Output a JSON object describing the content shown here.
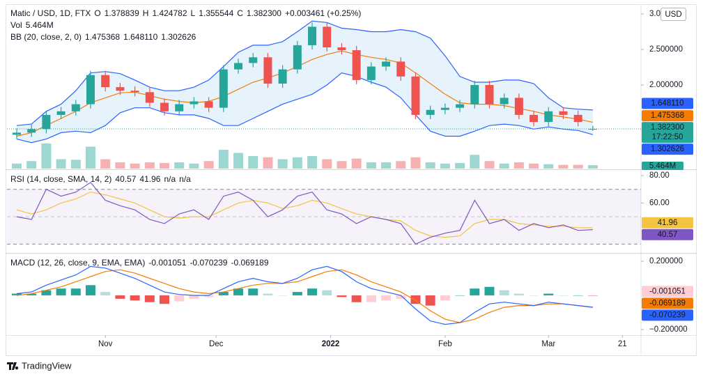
{
  "usd_button": "USD",
  "logo": "TradingView",
  "chart_data": [
    {
      "type": "candlestick",
      "title": "Matic / USD, 1D, FTX",
      "legend": [
        {
          "key": "O",
          "value": "1.378839"
        },
        {
          "key": "H",
          "value": "1.424782"
        },
        {
          "key": "L",
          "value": "1.355544"
        },
        {
          "key": "C",
          "value": "1.382300"
        }
      ],
      "change": "+0.003461 (+0.25%)",
      "categories": [
        null,
        null,
        null,
        null,
        null,
        null,
        null,
        null,
        null,
        null,
        null,
        null,
        null,
        null,
        null,
        null,
        null,
        null,
        null,
        null,
        null,
        null,
        null,
        null,
        null,
        null,
        null,
        null,
        null,
        null,
        null,
        null,
        null,
        null,
        null,
        null,
        null,
        null,
        null,
        null
      ],
      "opens": [
        1.3,
        1.33,
        1.38,
        1.58,
        1.63,
        1.73,
        2.14,
        1.97,
        1.92,
        1.9,
        1.75,
        1.63,
        1.73,
        1.77,
        1.68,
        2.22,
        2.31,
        2.39,
        2.02,
        2.22,
        2.56,
        2.82,
        2.53,
        2.49,
        2.07,
        2.26,
        2.33,
        2.12,
        1.58,
        1.65,
        1.68,
        1.73,
        2.0,
        1.73,
        1.82,
        1.58,
        1.48,
        1.63,
        1.58,
        1.378839
      ],
      "highs": [
        1.39,
        1.44,
        1.64,
        1.69,
        1.79,
        2.2,
        2.2,
        2.03,
        1.98,
        1.96,
        1.81,
        1.79,
        1.83,
        1.83,
        2.28,
        2.37,
        2.45,
        2.45,
        2.28,
        2.62,
        2.88,
        2.88,
        2.59,
        2.55,
        2.32,
        2.39,
        2.39,
        2.18,
        1.71,
        1.74,
        1.79,
        2.06,
        2.06,
        1.88,
        1.88,
        1.64,
        1.69,
        1.69,
        1.64,
        1.424782
      ],
      "lows": [
        1.24,
        1.27,
        1.32,
        1.52,
        1.57,
        1.67,
        1.91,
        1.86,
        1.84,
        1.69,
        1.57,
        1.57,
        1.67,
        1.62,
        1.62,
        2.16,
        2.25,
        1.96,
        1.96,
        2.16,
        2.5,
        2.47,
        2.43,
        2.01,
        2.01,
        2.2,
        2.06,
        1.52,
        1.52,
        1.59,
        1.62,
        1.67,
        1.67,
        1.67,
        1.52,
        1.42,
        1.42,
        1.52,
        1.42,
        1.355544
      ],
      "closes": [
        1.33,
        1.38,
        1.58,
        1.63,
        1.73,
        2.14,
        1.97,
        1.92,
        1.9,
        1.75,
        1.63,
        1.73,
        1.77,
        1.68,
        2.22,
        2.31,
        2.39,
        2.02,
        2.22,
        2.56,
        2.82,
        2.53,
        2.49,
        2.07,
        2.26,
        2.33,
        2.12,
        1.58,
        1.65,
        1.68,
        1.73,
        2.0,
        1.73,
        1.82,
        1.58,
        1.48,
        1.63,
        1.58,
        1.48,
        1.3823
      ],
      "up_color": "#26a69a",
      "down_color": "#ef5350",
      "volume": {
        "name": "Vol",
        "values": [
          8,
          12,
          40,
          15,
          14,
          35,
          15,
          10,
          8,
          10,
          9,
          10,
          8,
          12,
          30,
          25,
          20,
          18,
          15,
          18,
          20,
          15,
          12,
          16,
          10,
          10,
          12,
          18,
          10,
          8,
          9,
          22,
          12,
          8,
          10,
          8,
          7,
          6,
          6,
          5.464
        ],
        "last_label": "5.464M"
      },
      "bb": {
        "name": "BB (20, close, 2, 0)",
        "fill": "#e3f2fd",
        "basis": {
          "color": "#f57c00",
          "values": [
            1.28,
            1.33,
            1.43,
            1.53,
            1.63,
            1.75,
            1.82,
            1.89,
            1.9,
            1.85,
            1.8,
            1.77,
            1.75,
            1.77,
            1.84,
            1.94,
            2.04,
            2.1,
            2.17,
            2.26,
            2.36,
            2.43,
            2.48,
            2.43,
            2.39,
            2.36,
            2.31,
            2.17,
            2.02,
            1.87,
            1.75,
            1.73,
            1.73,
            1.71,
            1.67,
            1.63,
            1.58,
            1.55,
            1.52,
            1.475368
          ],
          "last_label": "1.475368"
        },
        "upper": {
          "color": "#2962ff",
          "values": [
            1.43,
            1.45,
            1.63,
            1.73,
            1.92,
            2.17,
            2.19,
            2.16,
            2.07,
            1.97,
            1.92,
            1.92,
            1.97,
            2.07,
            2.26,
            2.46,
            2.56,
            2.56,
            2.61,
            2.75,
            2.9,
            2.88,
            2.8,
            2.78,
            2.75,
            2.75,
            2.78,
            2.75,
            2.66,
            2.41,
            2.12,
            2.04,
            2.04,
            2.07,
            2.07,
            2.02,
            1.82,
            1.68,
            1.66,
            1.64811
          ],
          "last_label": "1.648110"
        },
        "lower": {
          "color": "#2962ff",
          "values": [
            1.24,
            1.19,
            1.24,
            1.33,
            1.35,
            1.33,
            1.43,
            1.61,
            1.68,
            1.68,
            1.61,
            1.58,
            1.58,
            1.53,
            1.43,
            1.43,
            1.53,
            1.63,
            1.73,
            1.8,
            1.87,
            2.0,
            2.17,
            2.12,
            2.04,
            1.97,
            1.82,
            1.58,
            1.35,
            1.28,
            1.28,
            1.35,
            1.43,
            1.45,
            1.43,
            1.38,
            1.41,
            1.38,
            1.36,
            1.302626
          ],
          "last_label": "1.302626"
        }
      },
      "last_price": {
        "value": 1.3823,
        "label": "1.382300"
      },
      "countdown": "17:22:50",
      "xlim": [
        -0.66,
        42.26
      ],
      "xticks": [
        {
          "value": 6,
          "label": "Nov"
        },
        {
          "value": 13.5,
          "label": "Dec"
        },
        {
          "value": 21.25,
          "label": "2022"
        },
        {
          "value": 29,
          "label": "Feb"
        },
        {
          "value": 36,
          "label": "Mar"
        },
        {
          "value": 41,
          "label": "21"
        }
      ],
      "ylim": [
        0.824,
        3.118
      ],
      "yticks": [
        {
          "value": 3,
          "label": "3.000000"
        },
        {
          "value": 2.5,
          "label": "2.500000"
        },
        {
          "value": 2,
          "label": "2.000000"
        }
      ]
    },
    {
      "type": "rsi",
      "title": "RSI (14, close, SMA, 14, 2)",
      "rsi": {
        "color": "#7e57c2",
        "values": [
          50,
          48,
          70,
          65,
          68,
          75,
          62,
          58,
          55,
          48,
          45,
          52,
          55,
          48,
          65,
          68,
          62,
          50,
          55,
          65,
          68,
          55,
          52,
          45,
          50,
          48,
          45,
          30,
          35,
          38,
          40,
          62,
          45,
          48,
          40,
          45,
          42,
          44,
          40,
          40.57
        ],
        "last_label": "40.57"
      },
      "sma": {
        "color": "#f5c342",
        "values": [
          55,
          52,
          55,
          60,
          63,
          68,
          66,
          63,
          60,
          55,
          50,
          49,
          50,
          50,
          55,
          60,
          62,
          60,
          56,
          58,
          62,
          60,
          56,
          52,
          50,
          48,
          47,
          40,
          36,
          35,
          36,
          45,
          48,
          48,
          45,
          44,
          43,
          43,
          42,
          41.96
        ],
        "last_label": "41.96"
      },
      "na": [
        "n/a",
        "n/a"
      ],
      "bands": [
        70,
        50,
        30
      ],
      "band_color": "#7e57c2",
      "ylim": [
        24.1,
        84.1
      ],
      "yticks": [
        {
          "value": 80,
          "label": "80.00"
        },
        {
          "value": 60,
          "label": "60.00"
        }
      ]
    },
    {
      "type": "macd",
      "title": "MACD (12, 26, close, 9, EMA, EMA)",
      "histogram": {
        "colors": [
          "#26a69a",
          "#b2dfdb",
          "#ffcdd2",
          "#ef5350"
        ],
        "values": [
          0.01,
          0.01,
          0.03,
          0.04,
          0.04,
          0.06,
          0.02,
          -0.02,
          -0.03,
          -0.04,
          -0.05,
          -0.035,
          -0.02,
          -0.01,
          0.02,
          0.04,
          0.04,
          0.01,
          0,
          0.02,
          0.04,
          0.03,
          -0.01,
          -0.04,
          -0.04,
          -0.03,
          -0.02,
          -0.05,
          -0.06,
          -0.03,
          0,
          0.04,
          0.05,
          0.03,
          0.01,
          0,
          0.01,
          0,
          0,
          -0.001051
        ],
        "last_label": "-0.001051"
      },
      "macd": {
        "color": "#2962ff",
        "values": [
          0.01,
          0.02,
          0.06,
          0.09,
          0.12,
          0.17,
          0.16,
          0.13,
          0.1,
          0.06,
          0.02,
          0.005,
          0,
          0,
          0.04,
          0.08,
          0.1,
          0.08,
          0.07,
          0.1,
          0.15,
          0.17,
          0.14,
          0.08,
          0.04,
          0.02,
          0,
          -0.08,
          -0.15,
          -0.17,
          -0.16,
          -0.1,
          -0.05,
          -0.04,
          -0.05,
          -0.06,
          -0.04,
          -0.05,
          -0.06,
          -0.070239
        ],
        "last_label": "-0.070239"
      },
      "signal": {
        "color": "#f57c00",
        "values": [
          0,
          0.01,
          0.03,
          0.05,
          0.08,
          0.11,
          0.14,
          0.15,
          0.13,
          0.1,
          0.07,
          0.04,
          0.02,
          0.01,
          0.02,
          0.04,
          0.06,
          0.07,
          0.07,
          0.08,
          0.11,
          0.14,
          0.15,
          0.12,
          0.08,
          0.05,
          0.02,
          -0.03,
          -0.09,
          -0.14,
          -0.16,
          -0.14,
          -0.1,
          -0.07,
          -0.06,
          -0.06,
          -0.05,
          -0.05,
          -0.06,
          -0.069189
        ],
        "last_label": "-0.069189"
      },
      "ylim": [
        -0.229,
        0.245
      ],
      "yticks": [
        {
          "value": 0.2,
          "label": "0.200000"
        },
        {
          "value": -0.2,
          "label": "−0.200000"
        }
      ]
    }
  ]
}
